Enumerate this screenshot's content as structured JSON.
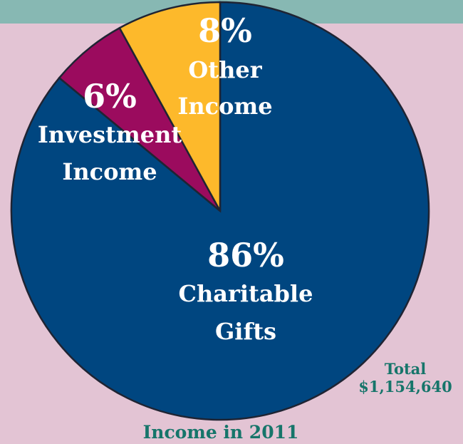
{
  "chart_data": {
    "type": "pie",
    "title": "Income in 2011",
    "total": {
      "label": "Total",
      "value": "$1,154,640"
    },
    "slices": [
      {
        "label_lines": [
          "Charitable",
          "Gifts"
        ],
        "value": 86,
        "percent_label": "86%",
        "color": "#004680"
      },
      {
        "label_lines": [
          "Investment",
          "Income"
        ],
        "value": 6,
        "percent_label": "6%",
        "color": "#9b0b5e"
      },
      {
        "label_lines": [
          "Other",
          "Income"
        ],
        "value": 8,
        "percent_label": "8%",
        "color": "#fdb92b"
      }
    ]
  },
  "colors": {
    "background": "#e3c4d4",
    "top_band": "#87b8b3",
    "text_accent": "#16756a",
    "slice_border": "#1f2433"
  }
}
